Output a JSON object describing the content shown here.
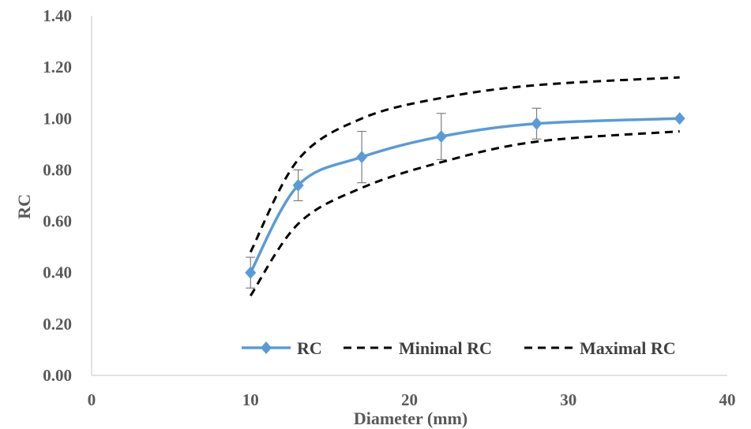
{
  "chart_data": {
    "type": "line",
    "xlabel": "Diameter (mm)",
    "ylabel": "RC",
    "xlim": [
      0,
      40
    ],
    "ylim": [
      0,
      1.4
    ],
    "x_ticks": [
      "0",
      "10",
      "20",
      "30",
      "40"
    ],
    "y_ticks": [
      "0.00",
      "0.20",
      "0.40",
      "0.60",
      "0.80",
      "1.00",
      "1.20",
      "1.40"
    ],
    "grid": false,
    "legend_position": "bottom-right",
    "series": [
      {
        "name": "RC",
        "style": "solid-markers",
        "color": "#5B9BD5",
        "x": [
          10,
          13,
          17,
          22,
          28,
          37
        ],
        "y": [
          0.4,
          0.74,
          0.85,
          0.93,
          0.98,
          1.0
        ],
        "error": [
          0.06,
          0.06,
          0.1,
          0.09,
          0.06,
          0.0
        ]
      },
      {
        "name": "Minimal RC",
        "style": "dashed",
        "color": "#000000",
        "x": [
          10,
          13,
          17,
          22,
          28,
          37
        ],
        "y": [
          0.31,
          0.59,
          0.73,
          0.83,
          0.91,
          0.95
        ]
      },
      {
        "name": "Maximal RC",
        "style": "dashed",
        "color": "#000000",
        "x": [
          10,
          13,
          17,
          22,
          28,
          37
        ],
        "y": [
          0.48,
          0.84,
          1.0,
          1.08,
          1.13,
          1.16
        ]
      }
    ]
  }
}
